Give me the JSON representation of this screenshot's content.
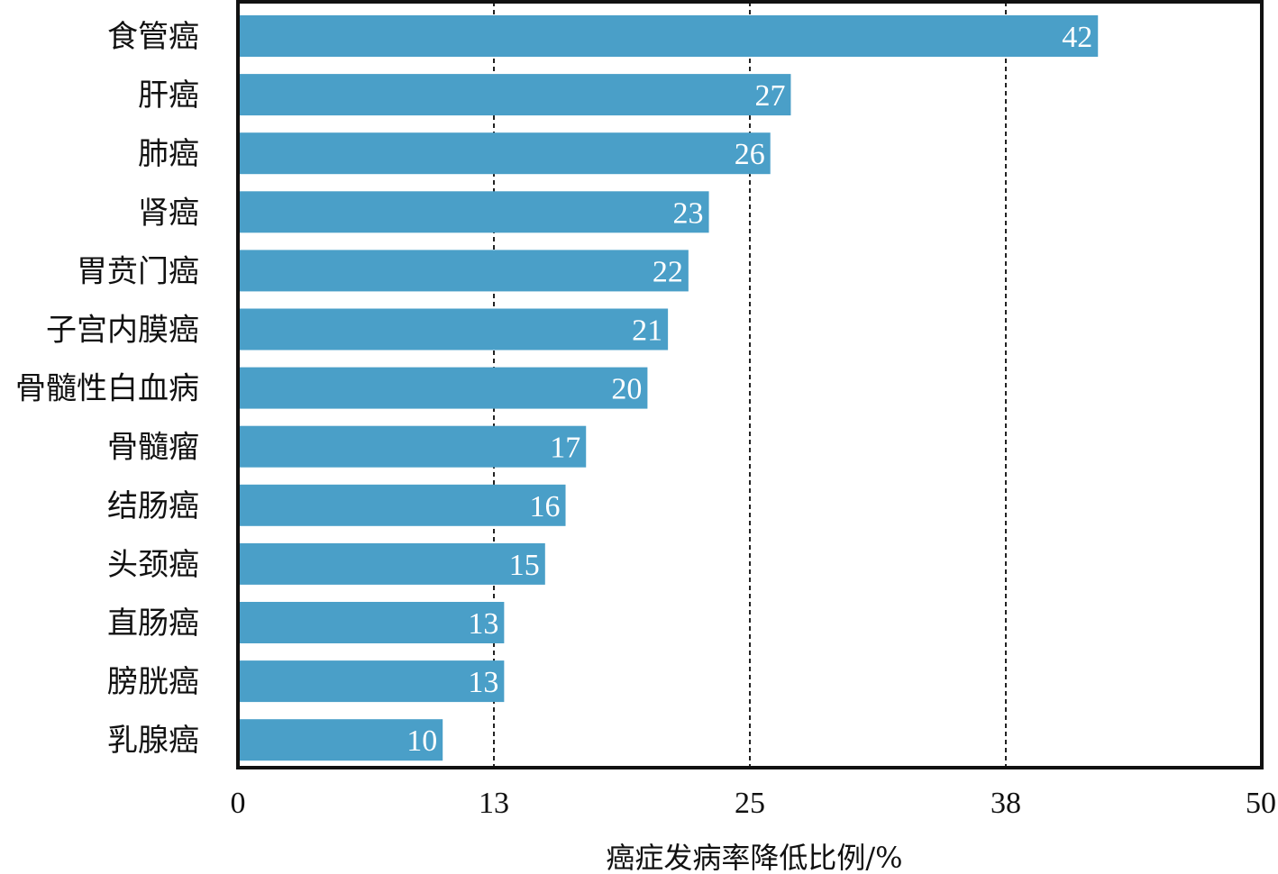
{
  "chart_data": {
    "type": "bar",
    "orientation": "horizontal",
    "categories": [
      "食管癌",
      "肝癌",
      "肺癌",
      "肾癌",
      "胃贲门癌",
      "子宫内膜癌",
      "骨髓性白血病",
      "骨髓瘤",
      "结肠癌",
      "头颈癌",
      "直肠癌",
      "膀胱癌",
      "乳腺癌"
    ],
    "values": [
      42,
      27,
      26,
      23,
      22,
      21,
      20,
      17,
      16,
      15,
      13,
      13,
      10
    ],
    "value_labels": [
      "42",
      "27",
      "26",
      "23",
      "22",
      "21",
      "20",
      "17",
      "16",
      "15",
      "13",
      "13",
      "10"
    ],
    "xlabel": "癌症发病率降低比例/%",
    "ylabel": "",
    "xlim": [
      0,
      50
    ],
    "xticks": [
      0,
      12.5,
      25,
      37.5,
      50
    ],
    "xtick_labels": [
      "0",
      "13",
      "25",
      "38",
      "50"
    ],
    "gridlines": [
      12.5,
      25,
      37.5
    ],
    "grid": "vertical dashed",
    "bar_color": "#4a9fc8",
    "frame_color": "#111111",
    "label_color": "#ffffff"
  }
}
